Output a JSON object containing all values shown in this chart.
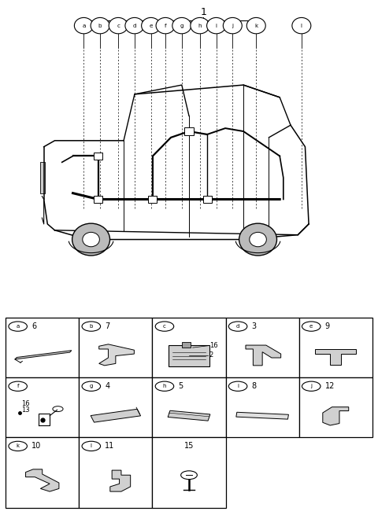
{
  "bg_color": "#ffffff",
  "callout_letters": [
    "a",
    "b",
    "c",
    "d",
    "e",
    "f",
    "g",
    "h",
    "i",
    "j",
    "k",
    "l"
  ],
  "cell_configs": [
    {
      "row": 0,
      "col": 0,
      "label": "a",
      "number": "6",
      "sub_labels": []
    },
    {
      "row": 0,
      "col": 1,
      "label": "b",
      "number": "7",
      "sub_labels": []
    },
    {
      "row": 0,
      "col": 2,
      "label": "c",
      "number": "",
      "sub_labels": [
        "16",
        "2"
      ]
    },
    {
      "row": 0,
      "col": 3,
      "label": "d",
      "number": "3",
      "sub_labels": []
    },
    {
      "row": 0,
      "col": 4,
      "label": "e",
      "number": "9",
      "sub_labels": []
    },
    {
      "row": 1,
      "col": 0,
      "label": "f",
      "number": "",
      "sub_labels": [
        "16",
        "13"
      ]
    },
    {
      "row": 1,
      "col": 1,
      "label": "g",
      "number": "4",
      "sub_labels": []
    },
    {
      "row": 1,
      "col": 2,
      "label": "h",
      "number": "5",
      "sub_labels": []
    },
    {
      "row": 1,
      "col": 3,
      "label": "i",
      "number": "8",
      "sub_labels": []
    },
    {
      "row": 1,
      "col": 4,
      "label": "j",
      "number": "12",
      "sub_labels": []
    },
    {
      "row": 2,
      "col": 0,
      "label": "k",
      "number": "10",
      "sub_labels": []
    },
    {
      "row": 2,
      "col": 1,
      "label": "l",
      "number": "11",
      "sub_labels": []
    },
    {
      "row": 2,
      "col": 2,
      "label": "",
      "number": "15",
      "sub_labels": []
    }
  ]
}
